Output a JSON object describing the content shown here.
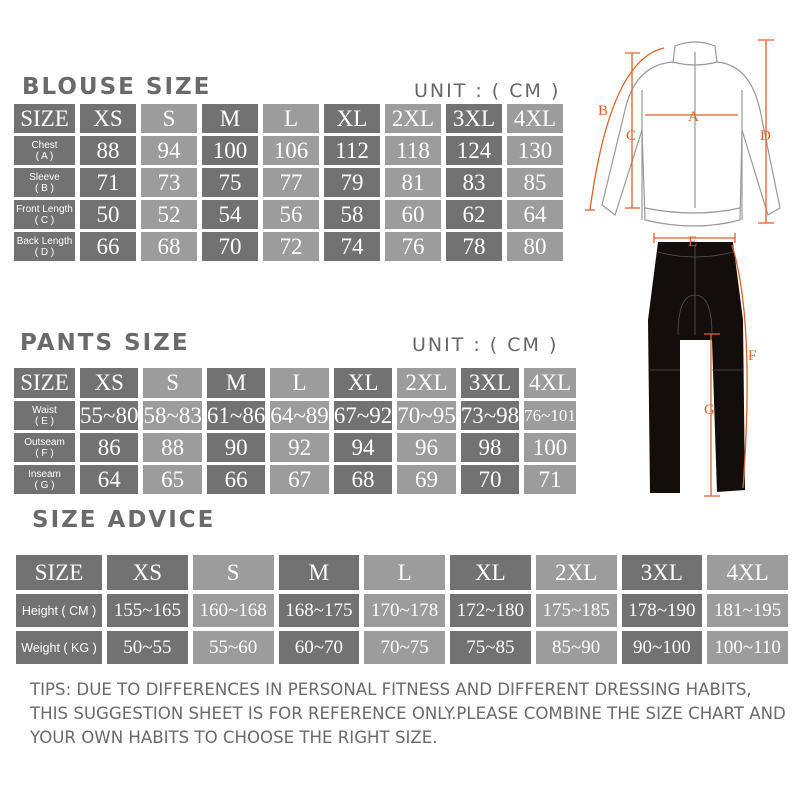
{
  "sizes": [
    "XS",
    "S",
    "M",
    "L",
    "XL",
    "2XL",
    "3XL",
    "4XL"
  ],
  "blouse": {
    "title": "BLOUSE SIZE",
    "unit": "UNIT : ( CM )",
    "size_label": "SIZE",
    "rows": [
      {
        "label": "Chest",
        "code": "( A )",
        "values": [
          "88",
          "94",
          "100",
          "106",
          "112",
          "118",
          "124",
          "130"
        ]
      },
      {
        "label": "Sleeve",
        "code": "( B )",
        "values": [
          "71",
          "73",
          "75",
          "77",
          "79",
          "81",
          "83",
          "85"
        ]
      },
      {
        "label": "Front Length",
        "code": "( C )",
        "values": [
          "50",
          "52",
          "54",
          "56",
          "58",
          "60",
          "62",
          "64"
        ]
      },
      {
        "label": "Back Length",
        "code": "( D )",
        "values": [
          "66",
          "68",
          "70",
          "72",
          "74",
          "76",
          "78",
          "80"
        ]
      }
    ]
  },
  "pants": {
    "title": "PANTS SIZE",
    "unit": "UNIT : ( CM )",
    "size_label": "SIZE",
    "rows": [
      {
        "label": "Waist",
        "code": "( E )",
        "values": [
          "55~80",
          "58~83",
          "61~86",
          "64~89",
          "67~92",
          "70~95",
          "73~98",
          "76~101"
        ]
      },
      {
        "label": "Outseam",
        "code": "( F )",
        "values": [
          "86",
          "88",
          "90",
          "92",
          "94",
          "96",
          "98",
          "100"
        ]
      },
      {
        "label": "Inseam",
        "code": "( G )",
        "values": [
          "64",
          "65",
          "66",
          "67",
          "68",
          "69",
          "70",
          "71"
        ]
      }
    ]
  },
  "advice": {
    "title": "SIZE ADVICE",
    "size_label": "SIZE",
    "rows": [
      {
        "label": "Height ( CM )",
        "values": [
          "155~165",
          "160~168",
          "168~175",
          "170~178",
          "172~180",
          "175~185",
          "178~190",
          "181~195"
        ]
      },
      {
        "label": "Weight ( KG )",
        "values": [
          "50~55",
          "55~60",
          "60~70",
          "70~75",
          "75~85",
          "85~90",
          "90~100",
          "100~110"
        ]
      }
    ]
  },
  "diagram": {
    "markers": [
      "A",
      "B",
      "C",
      "D",
      "E",
      "F",
      "G"
    ],
    "accent_color": "#e0622a"
  },
  "tips": "TIPS: DUE TO DIFFERENCES IN PERSONAL FITNESS AND DIFFERENT DRESSING HABITS, THIS SUGGESTION SHEET IS FOR REFERENCE ONLY.PLEASE COMBINE THE SIZE CHART AND YOUR OWN HABITS TO CHOOSE THE RIGHT SIZE."
}
